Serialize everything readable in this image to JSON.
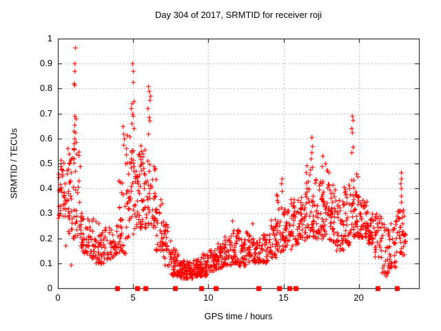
{
  "colors": {
    "marker": "#ff0000",
    "grid": "#b4b4b4",
    "axis": "#000000",
    "background": "#ffffff",
    "text": "#000000"
  },
  "chart_data": {
    "type": "scatter",
    "title": "Day 304 of 2017, SRMTID for receiver roji",
    "xlabel": "GPS time / hours",
    "ylabel": "SRMTID / TECUs",
    "xlim": [
      0,
      24
    ],
    "ylim": [
      0,
      1
    ],
    "x_ticks": [
      0,
      5,
      10,
      15,
      20
    ],
    "x_tick_labels": [
      "0",
      "5",
      "10",
      "15",
      "20"
    ],
    "y_ticks": [
      0,
      0.1,
      0.2,
      0.3,
      0.4,
      0.5,
      0.6,
      0.7,
      0.8,
      0.9,
      1
    ],
    "y_tick_labels": [
      "0",
      "0.1",
      "0.2",
      "0.3",
      "0.4",
      "0.5",
      "0.6",
      "0.7",
      "0.8",
      "0.9",
      "1"
    ],
    "grid": true,
    "legend": "none",
    "series": [
      {
        "name": "SRMTID",
        "marker": "plus",
        "color": "#ff0000",
        "density_bins": [
          [
            0.0,
            0.5,
            0.28,
            0.52,
            34
          ],
          [
            0.5,
            1.0,
            0.22,
            0.57,
            30
          ],
          [
            1.0,
            1.5,
            0.2,
            0.6,
            38
          ],
          [
            1.5,
            2.0,
            0.14,
            0.32,
            30
          ],
          [
            2.0,
            2.5,
            0.12,
            0.28,
            30
          ],
          [
            2.5,
            3.0,
            0.1,
            0.26,
            30
          ],
          [
            3.0,
            3.5,
            0.1,
            0.25,
            28
          ],
          [
            3.5,
            4.0,
            0.12,
            0.3,
            26
          ],
          [
            4.0,
            4.5,
            0.14,
            0.45,
            30
          ],
          [
            4.5,
            5.0,
            0.2,
            0.62,
            40
          ],
          [
            5.0,
            5.5,
            0.24,
            0.62,
            40
          ],
          [
            5.5,
            6.0,
            0.24,
            0.56,
            36
          ],
          [
            6.0,
            6.5,
            0.24,
            0.5,
            32
          ],
          [
            6.5,
            7.0,
            0.15,
            0.38,
            30
          ],
          [
            7.0,
            7.5,
            0.09,
            0.26,
            32
          ],
          [
            7.5,
            8.0,
            0.05,
            0.16,
            40
          ],
          [
            8.0,
            8.5,
            0.04,
            0.12,
            46
          ],
          [
            8.5,
            9.0,
            0.04,
            0.11,
            46
          ],
          [
            9.0,
            9.5,
            0.05,
            0.12,
            42
          ],
          [
            9.5,
            10.0,
            0.05,
            0.14,
            40
          ],
          [
            10.0,
            10.5,
            0.07,
            0.16,
            36
          ],
          [
            10.5,
            11.0,
            0.08,
            0.18,
            36
          ],
          [
            11.0,
            11.5,
            0.09,
            0.21,
            36
          ],
          [
            11.5,
            12.0,
            0.1,
            0.24,
            36
          ],
          [
            12.0,
            12.5,
            0.09,
            0.2,
            36
          ],
          [
            12.5,
            13.0,
            0.1,
            0.23,
            34
          ],
          [
            13.0,
            13.5,
            0.1,
            0.2,
            32
          ],
          [
            13.5,
            14.0,
            0.1,
            0.22,
            30
          ],
          [
            14.0,
            14.5,
            0.12,
            0.28,
            30
          ],
          [
            14.5,
            15.0,
            0.14,
            0.4,
            34
          ],
          [
            15.0,
            15.5,
            0.15,
            0.33,
            34
          ],
          [
            15.5,
            16.0,
            0.17,
            0.36,
            34
          ],
          [
            16.0,
            16.5,
            0.19,
            0.38,
            34
          ],
          [
            16.5,
            17.0,
            0.2,
            0.5,
            36
          ],
          [
            17.0,
            17.5,
            0.2,
            0.44,
            36
          ],
          [
            17.5,
            18.0,
            0.2,
            0.5,
            40
          ],
          [
            18.0,
            18.5,
            0.18,
            0.42,
            36
          ],
          [
            18.5,
            19.0,
            0.15,
            0.36,
            34
          ],
          [
            19.0,
            19.5,
            0.17,
            0.42,
            36
          ],
          [
            19.5,
            20.0,
            0.19,
            0.46,
            40
          ],
          [
            20.0,
            20.5,
            0.2,
            0.36,
            36
          ],
          [
            20.5,
            21.0,
            0.18,
            0.32,
            36
          ],
          [
            21.0,
            21.5,
            0.12,
            0.3,
            30
          ],
          [
            21.5,
            22.0,
            0.06,
            0.26,
            30
          ],
          [
            22.0,
            22.5,
            0.08,
            0.28,
            30
          ],
          [
            22.5,
            23.0,
            0.12,
            0.33,
            30
          ],
          [
            23.0,
            23.15,
            0.18,
            0.3,
            6
          ]
        ],
        "outliers": [
          [
            0.65,
            0.56
          ],
          [
            0.75,
            0.54
          ],
          [
            0.85,
            0.52
          ],
          [
            0.85,
            0.095
          ],
          [
            0.5,
            0.17
          ],
          [
            1.15,
            0.965
          ],
          [
            1.1,
            0.9
          ],
          [
            1.08,
            0.87
          ],
          [
            1.05,
            0.82
          ],
          [
            1.12,
            0.815
          ],
          [
            1.1,
            0.69
          ],
          [
            1.18,
            0.68
          ],
          [
            1.1,
            0.655
          ],
          [
            1.05,
            0.63
          ],
          [
            1.15,
            0.625
          ],
          [
            1.08,
            0.6
          ],
          [
            1.2,
            0.585
          ],
          [
            4.3,
            0.65
          ],
          [
            4.35,
            0.62
          ],
          [
            4.4,
            0.6
          ],
          [
            4.35,
            0.575
          ],
          [
            4.95,
            0.9
          ],
          [
            5.0,
            0.87
          ],
          [
            4.97,
            0.825
          ],
          [
            5.05,
            0.75
          ],
          [
            4.9,
            0.74
          ],
          [
            4.85,
            0.72
          ],
          [
            4.95,
            0.7
          ],
          [
            5.0,
            0.69
          ],
          [
            4.9,
            0.66
          ],
          [
            5.05,
            0.64
          ],
          [
            6.0,
            0.81
          ],
          [
            6.05,
            0.79
          ],
          [
            6.15,
            0.77
          ],
          [
            6.1,
            0.755
          ],
          [
            5.95,
            0.72
          ],
          [
            6.05,
            0.685
          ],
          [
            6.1,
            0.67
          ],
          [
            6.0,
            0.62
          ],
          [
            11.6,
            0.27
          ],
          [
            12.9,
            0.26
          ],
          [
            14.9,
            0.44
          ],
          [
            14.85,
            0.42
          ],
          [
            16.85,
            0.605
          ],
          [
            16.9,
            0.57
          ],
          [
            16.85,
            0.545
          ],
          [
            16.8,
            0.52
          ],
          [
            17.6,
            0.53
          ],
          [
            17.75,
            0.5
          ],
          [
            19.55,
            0.69
          ],
          [
            19.6,
            0.675
          ],
          [
            19.5,
            0.64
          ],
          [
            19.55,
            0.625
          ],
          [
            19.6,
            0.565
          ],
          [
            19.5,
            0.545
          ],
          [
            22.8,
            0.465
          ],
          [
            22.8,
            0.44
          ],
          [
            22.78,
            0.42
          ],
          [
            22.82,
            0.4
          ],
          [
            22.8,
            0.37
          ],
          [
            22.8,
            0.345
          ],
          [
            21.8,
            0.05
          ],
          [
            21.9,
            0.06
          ]
        ]
      },
      {
        "name": "event markers",
        "marker": "filled-square",
        "color": "#ff0000",
        "y": 0,
        "x": [
          3.93,
          5.27,
          5.83,
          7.8,
          9.54,
          10.5,
          13.35,
          14.72,
          15.41,
          15.8,
          21.25,
          22.55
        ]
      }
    ]
  }
}
